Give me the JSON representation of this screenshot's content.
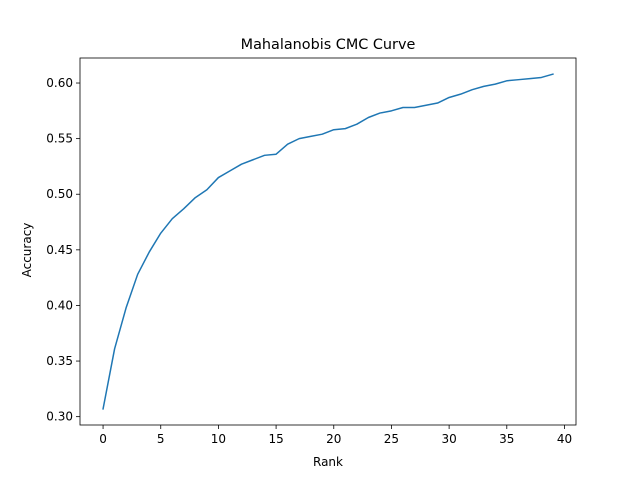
{
  "chart_data": {
    "type": "line",
    "title": "Mahalanobis CMC Curve",
    "xlabel": "Rank",
    "ylabel": "Accuracy",
    "xlim": [
      -2,
      41
    ],
    "ylim": [
      0.2925,
      0.6225
    ],
    "xticks": [
      0,
      5,
      10,
      15,
      20,
      25,
      30,
      35,
      40
    ],
    "yticks": [
      0.3,
      0.35,
      0.4,
      0.45,
      0.5,
      0.55,
      0.6
    ],
    "ytick_labels": [
      "0.30",
      "0.35",
      "0.40",
      "0.45",
      "0.50",
      "0.55",
      "0.60"
    ],
    "grid": false,
    "line_color": "#1f77b4",
    "series": [
      {
        "x": [
          0,
          1,
          2,
          3,
          4,
          5,
          6,
          7,
          8,
          9,
          10,
          11,
          12,
          13,
          14,
          15,
          16,
          17,
          18,
          19,
          20,
          21,
          22,
          23,
          24,
          25,
          26,
          27,
          28,
          29,
          30,
          31,
          32,
          33,
          34,
          35,
          36,
          37,
          38,
          39
        ],
        "values": [
          0.307,
          0.361,
          0.398,
          0.428,
          0.448,
          0.465,
          0.478,
          0.487,
          0.497,
          0.504,
          0.515,
          0.521,
          0.527,
          0.531,
          0.535,
          0.536,
          0.545,
          0.55,
          0.552,
          0.554,
          0.558,
          0.559,
          0.563,
          0.569,
          0.573,
          0.575,
          0.578,
          0.578,
          0.58,
          0.582,
          0.587,
          0.59,
          0.594,
          0.597,
          0.599,
          0.602,
          0.603,
          0.604,
          0.605,
          0.608
        ]
      }
    ]
  }
}
